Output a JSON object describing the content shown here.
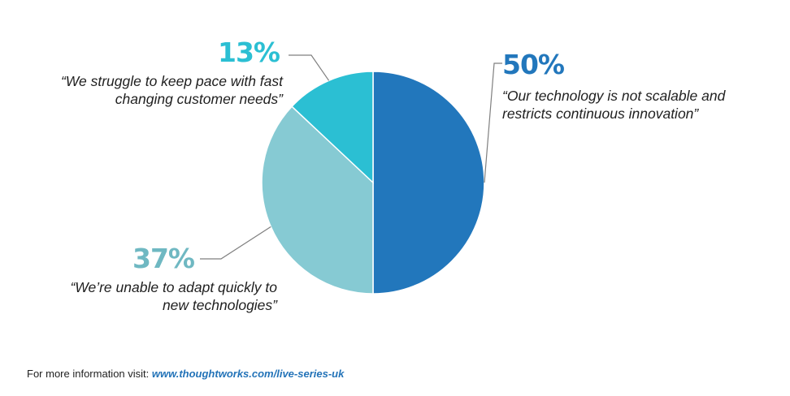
{
  "chart_data": {
    "type": "pie",
    "start_angle_deg": 0,
    "direction": "clockwise",
    "slices": [
      {
        "value": 50,
        "label": "50%",
        "quote_lines": [
          "“Our technology is not scalable and",
          "restricts continuous innovation”"
        ],
        "color": "#2277bc",
        "label_color": "#2277bc"
      },
      {
        "value": 37,
        "label": "37%",
        "quote_lines": [
          "“We’re unable to adapt quickly to",
          "new technologies”"
        ],
        "color": "#86cad3",
        "label_color": "#6fb8c2"
      },
      {
        "value": 13,
        "label": "13%",
        "quote_lines": [
          "“We struggle to keep pace with fast",
          "changing customer needs”"
        ],
        "color": "#2bbfd3",
        "label_color": "#2bbfd3"
      }
    ]
  },
  "footer": {
    "text": "For more information visit: ",
    "link": "www.thoughtworks.com/live-series-uk"
  },
  "colors": {
    "leader_line": "#7f7f7f",
    "link": "#2373b8"
  }
}
